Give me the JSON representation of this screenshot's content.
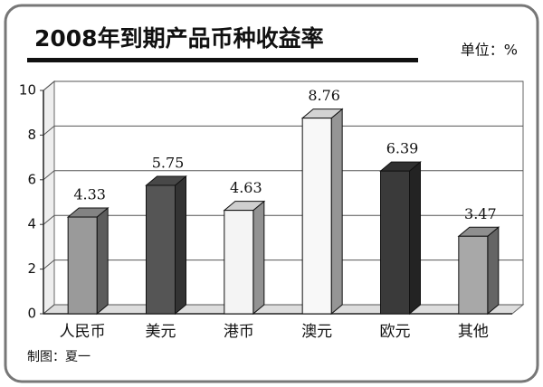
{
  "chart_data": {
    "type": "bar3d",
    "title": "2008年到期产品币种收益率",
    "unit": "单位：%",
    "credit": "制图：夏一",
    "categories": [
      "人民币",
      "美元",
      "港币",
      "澳元",
      "欧元",
      "其他"
    ],
    "values": [
      4.33,
      5.75,
      4.63,
      8.76,
      6.39,
      3.47
    ],
    "colors": [
      "#9a9a9a",
      "#555555",
      "#f4f4f4",
      "#f8f8f8",
      "#3a3a3a",
      "#a8a8a8"
    ],
    "ylim": [
      0,
      10
    ],
    "yticks": [
      0,
      2,
      4,
      6,
      8,
      10
    ],
    "grid": true
  }
}
